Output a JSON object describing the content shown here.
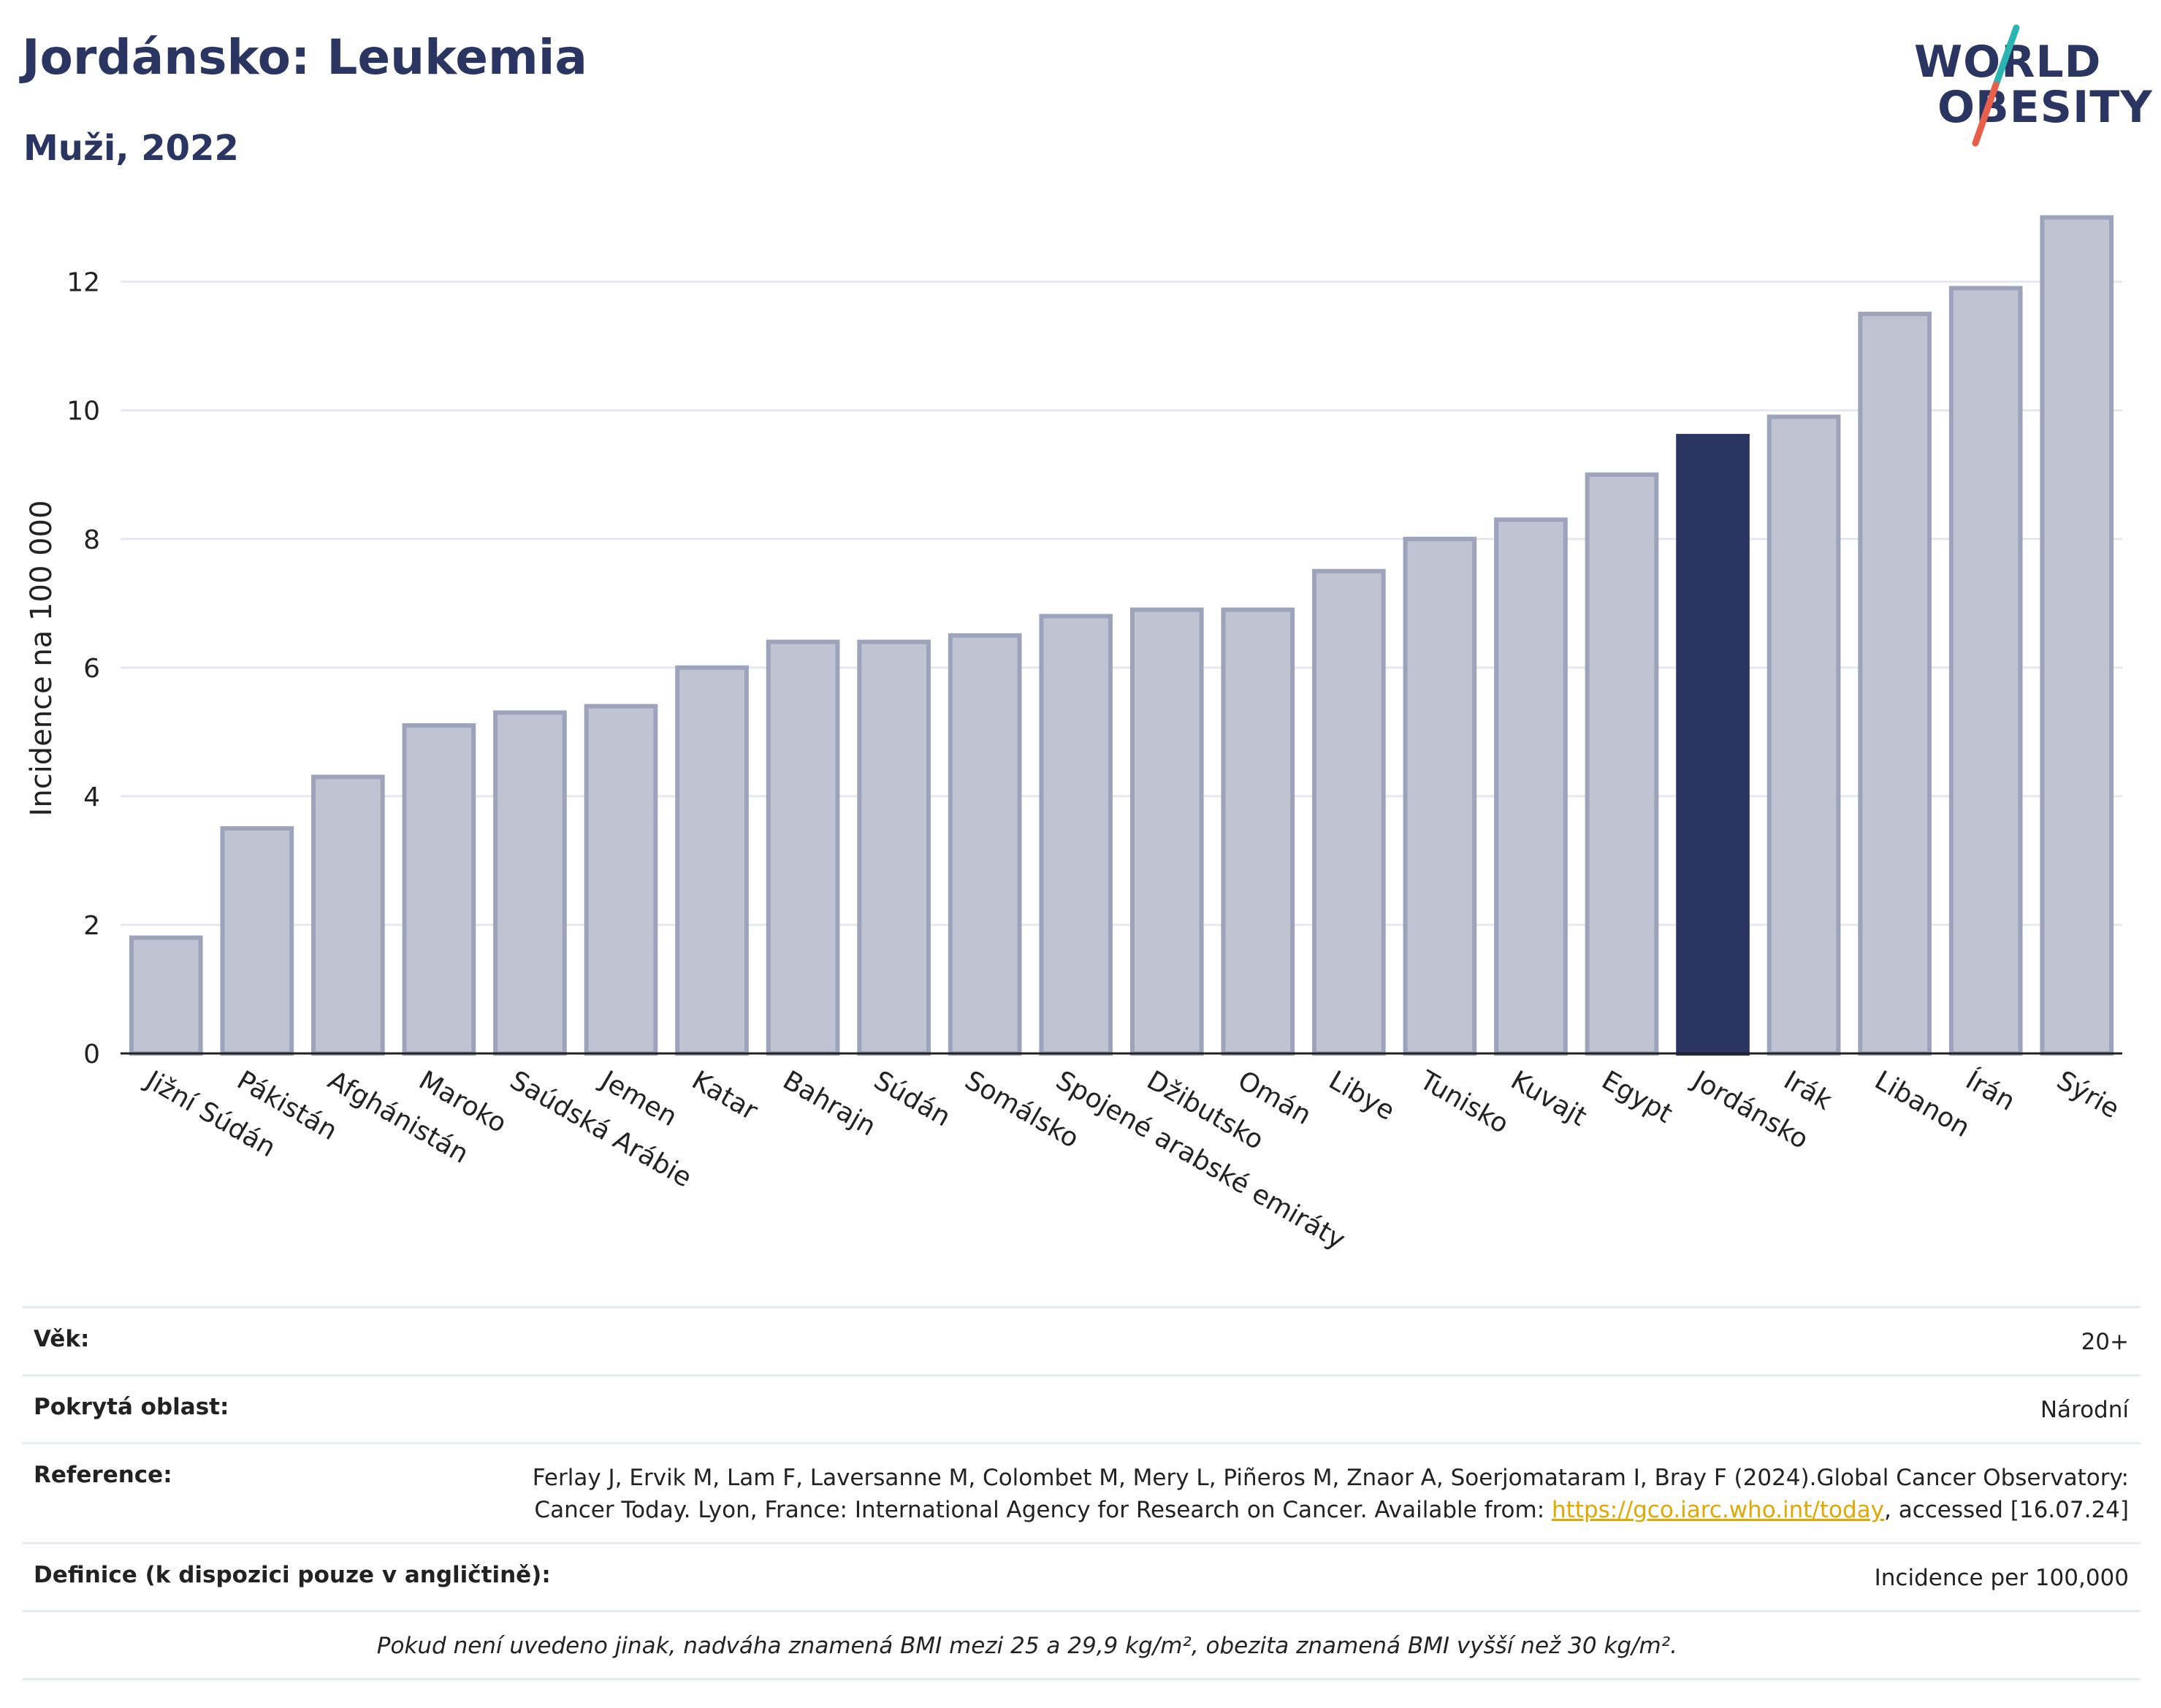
{
  "header": {
    "title": "Jordánsko: Leukemia",
    "subtitle": "Muži, 2022"
  },
  "logo": {
    "line1": "WORLD",
    "line2": "OBESITY",
    "slash_colors": [
      "#2bb5b0",
      "#e8604c"
    ]
  },
  "colors": {
    "bar_default": "#c0c3d2",
    "bar_default_stroke": "#9da3bb",
    "bar_highlight": "#2b3561",
    "grid": "#e6e8ee",
    "link": "#e0a800"
  },
  "chart_data": {
    "type": "bar",
    "ylabel": "Incidence na 100 000",
    "ylim": [
      0,
      13.2
    ],
    "yticks": [
      0,
      2,
      4,
      6,
      8,
      10,
      12
    ],
    "grid": true,
    "highlight": "Jordánsko",
    "categories": [
      "Jižní Súdán",
      "Pákistán",
      "Afghánistán",
      "Maroko",
      "Saúdská Arábie",
      "Jemen",
      "Katar",
      "Bahrajn",
      "Súdán",
      "Somálsko",
      "Spojené arabské emiráty",
      "Džibutsko",
      "Omán",
      "Libye",
      "Tunisko",
      "Kuvajt",
      "Egypt",
      "Jordánsko",
      "Irák",
      "Libanon",
      "Írán",
      "Sýrie"
    ],
    "values": [
      1.8,
      3.5,
      4.3,
      5.1,
      5.3,
      5.4,
      6.0,
      6.4,
      6.4,
      6.5,
      6.8,
      6.9,
      6.9,
      7.5,
      8.0,
      8.3,
      9.0,
      9.6,
      9.9,
      11.5,
      11.9,
      13.0
    ]
  },
  "info": {
    "age_label": "Věk:",
    "age_value": "20+",
    "area_label": "Pokrytá oblast:",
    "area_value": "Národní",
    "ref_label": "Reference:",
    "ref_text": "Ferlay J, Ervik M, Lam F, Laversanne M, Colombet M, Mery L, Piñeros M, Znaor A, Soerjomataram I, Bray F (2024).Global Cancer Observatory: Cancer Today. Lyon, France: International Agency for Research on Cancer. Available from: ",
    "ref_link": "https://gco.iarc.who.int/today",
    "ref_tail": ", accessed [16.07.24]",
    "def_label": "Definice (k dispozici pouze v angličtině):",
    "def_value": "Incidence per 100,000",
    "note": "Pokud není uvedeno jinak, nadváha znamená BMI mezi 25 a 29,9 kg/m², obezita znamená BMI vyšší než 30 kg/m²."
  }
}
